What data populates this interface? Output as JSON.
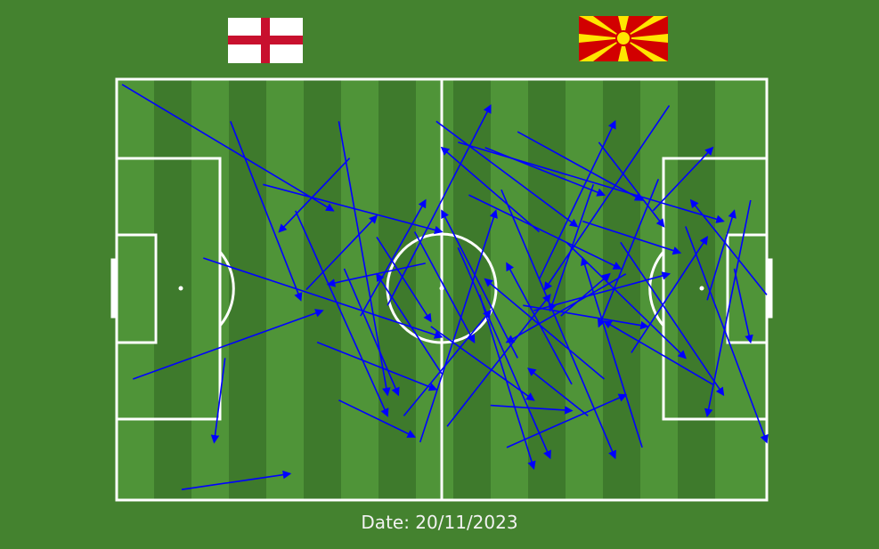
{
  "date_text": "Date: 20/11/2023",
  "teams": {
    "left": {
      "flag": "england-flag",
      "colors": {
        "field": "#ffffff",
        "cross": "#c8102e"
      }
    },
    "right": {
      "flag": "north-macedonia-flag",
      "colors": {
        "field": "#d20000",
        "sun": "#ffe600"
      }
    }
  },
  "colors": {
    "background": "#44822f",
    "stripe_light": "#4f9438",
    "stripe_dark": "#3e7a2c",
    "lines": "#ffffff",
    "arrows": "#0000ff"
  },
  "chart_data": {
    "type": "pass-map",
    "pitch": {
      "length": 120,
      "width": 80
    },
    "arrow_color": "#0000ff",
    "passes": [
      [
        1,
        1,
        40,
        25
      ],
      [
        20,
        53,
        18,
        69
      ],
      [
        3,
        57,
        38,
        44
      ],
      [
        43,
        15,
        30,
        29
      ],
      [
        41,
        8,
        50,
        60
      ],
      [
        50,
        43,
        69,
        5
      ],
      [
        74,
        10,
        97,
        23
      ],
      [
        94,
        37,
        72,
        50
      ],
      [
        120,
        41,
        106,
        23
      ],
      [
        105,
        28,
        120,
        69
      ],
      [
        63,
        12,
        112,
        27
      ],
      [
        88,
        20,
        80,
        44
      ],
      [
        12,
        78,
        32,
        75
      ],
      [
        16,
        34,
        60,
        49
      ],
      [
        33,
        25,
        50,
        64
      ],
      [
        27,
        20,
        60,
        29
      ],
      [
        21,
        8,
        34,
        42
      ],
      [
        60,
        56,
        48,
        37
      ],
      [
        65,
        22,
        93,
        36
      ],
      [
        78,
        29,
        60,
        13
      ],
      [
        102,
        5,
        79,
        40
      ],
      [
        99,
        25,
        110,
        13
      ],
      [
        90,
        57,
        68,
        38
      ],
      [
        75,
        43,
        98,
        47
      ],
      [
        57,
        35,
        39,
        39
      ],
      [
        117,
        23,
        109,
        64
      ],
      [
        114,
        36,
        117,
        50
      ],
      [
        110,
        58,
        90,
        46
      ],
      [
        87,
        64,
        76,
        55
      ],
      [
        67,
        41,
        77,
        74
      ],
      [
        69,
        62,
        84,
        63
      ],
      [
        82,
        45,
        91,
        37
      ],
      [
        93,
        31,
        112,
        60
      ],
      [
        41,
        61,
        55,
        68
      ],
      [
        58,
        47,
        77,
        61
      ],
      [
        74,
        53,
        60,
        25
      ],
      [
        59,
        8,
        85,
        28
      ],
      [
        56,
        69,
        70,
        25
      ],
      [
        97,
        70,
        86,
        34
      ],
      [
        71,
        21,
        92,
        72
      ],
      [
        109,
        42,
        114,
        25
      ],
      [
        77,
        44,
        102,
        37
      ],
      [
        83,
        31,
        105,
        53
      ],
      [
        63,
        32,
        80,
        72
      ],
      [
        78,
        38,
        92,
        8
      ],
      [
        48,
        30,
        58,
        46
      ],
      [
        53,
        64,
        69,
        44
      ],
      [
        42,
        36,
        52,
        60
      ],
      [
        37,
        50,
        59,
        59
      ],
      [
        68,
        13,
        90,
        22
      ],
      [
        55,
        29,
        66,
        50
      ],
      [
        45,
        45,
        57,
        23
      ],
      [
        86,
        27,
        104,
        33
      ],
      [
        100,
        19,
        89,
        47
      ],
      [
        72,
        70,
        94,
        60
      ],
      [
        95,
        52,
        109,
        30
      ],
      [
        35,
        40,
        48,
        26
      ],
      [
        61,
        66,
        80,
        41
      ],
      [
        89,
        12,
        101,
        28
      ],
      [
        84,
        58,
        72,
        35
      ]
    ]
  }
}
